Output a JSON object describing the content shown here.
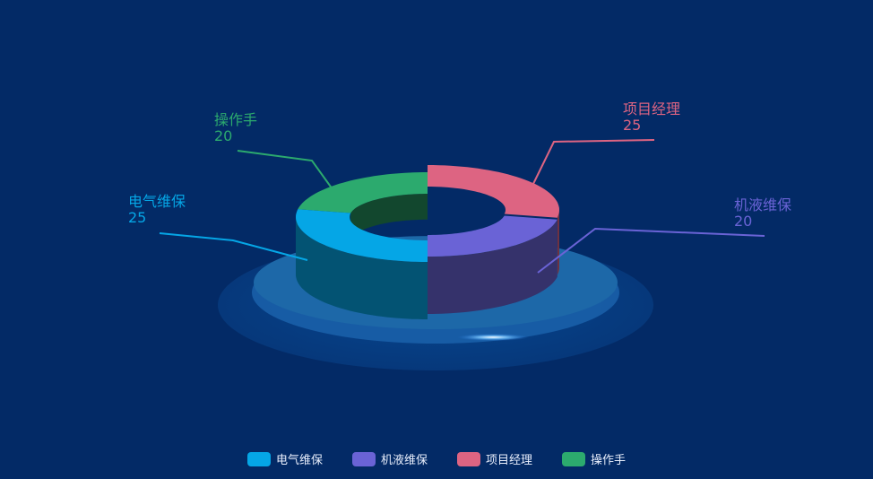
{
  "chart_data": {
    "type": "pie",
    "style": "3d-donut",
    "categories": [
      "电气维保",
      "机液维保",
      "项目经理",
      "操作手"
    ],
    "values": [
      25,
      20,
      25,
      20
    ],
    "colors": [
      "#05a6e6",
      "#6a63d6",
      "#dd6482",
      "#2caa6e"
    ],
    "legend_position": "bottom"
  }
}
